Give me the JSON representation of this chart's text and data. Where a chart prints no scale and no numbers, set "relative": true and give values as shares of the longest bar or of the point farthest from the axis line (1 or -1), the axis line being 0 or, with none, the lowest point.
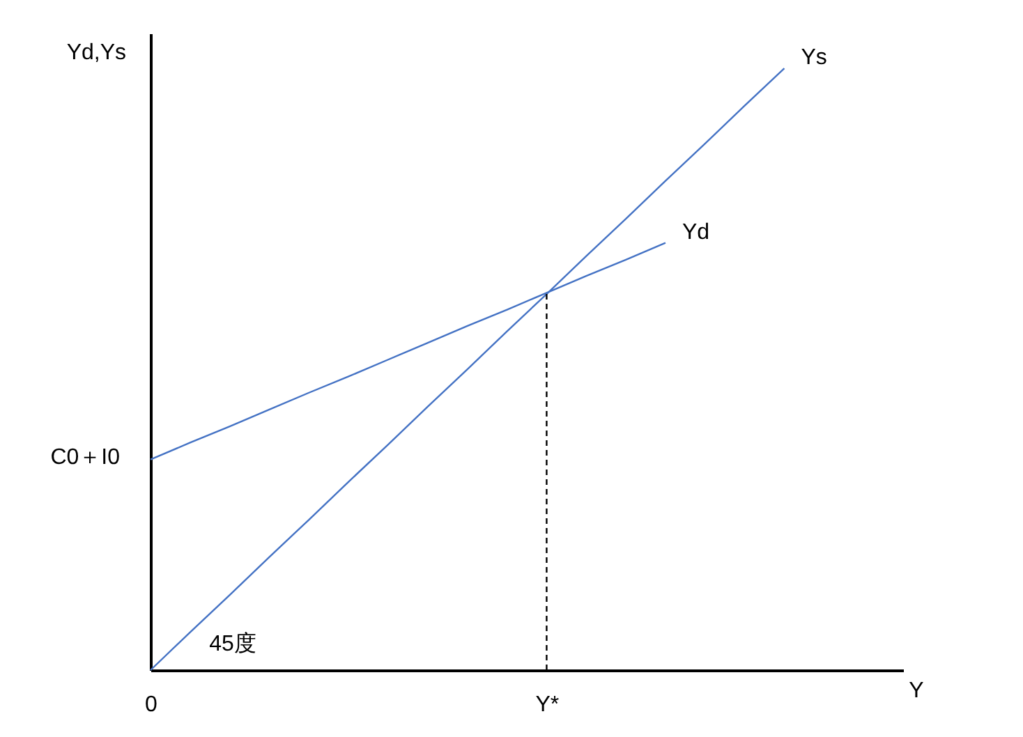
{
  "chart_data": {
    "type": "line",
    "relative": true,
    "xlabel": "Y",
    "ylabel": "Yd,Ys",
    "legend": false,
    "categories": [
      "0",
      null,
      null,
      null,
      null,
      null,
      null,
      null,
      null,
      null,
      "Y*",
      null,
      null,
      null,
      null,
      null,
      null,
      null,
      null,
      null
    ],
    "series": [
      {
        "name": "Ys",
        "color": "#4472c4",
        "values": [
          0,
          0.063,
          0.125,
          0.188,
          0.25,
          0.313,
          0.375,
          0.438,
          0.5,
          0.563,
          0.625,
          0.688,
          0.75,
          0.813,
          0.875,
          0.938,
          1,
          null,
          null,
          null
        ]
      },
      {
        "name": "Yd",
        "color": "#4472c4",
        "values": [
          0.35,
          0.378,
          0.405,
          0.433,
          0.461,
          0.488,
          0.516,
          0.544,
          0.572,
          0.599,
          0.627,
          0.655,
          0.682,
          0.71,
          null,
          null,
          null,
          null,
          null,
          null
        ]
      },
      {
        "color": "#000000",
        "line_style": "dashed",
        "x": [
          "Y*",
          "Y*"
        ],
        "values": [
          0,
          0.625
        ]
      }
    ],
    "annotations": [
      "C0＋I0",
      "45度"
    ]
  }
}
